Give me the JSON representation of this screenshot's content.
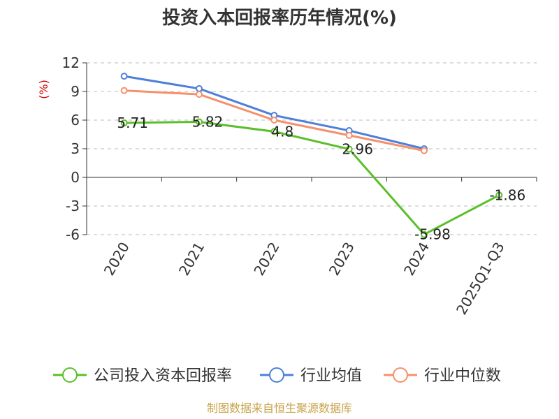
{
  "chart_data": {
    "type": "line",
    "title": "投资入本回报率历年情况(%)",
    "ylabel": "(%)",
    "categories": [
      "2020",
      "2021",
      "2022",
      "2023",
      "2024",
      "2025Q1-Q3"
    ],
    "y_ticks": [
      12,
      9,
      6,
      3,
      0,
      -3,
      -6
    ],
    "ylim": [
      -6,
      12
    ],
    "grid": true,
    "legend_position": "bottom",
    "series": [
      {
        "name": "公司投入资本回报率",
        "color": "#5bbf2a",
        "values": [
          5.71,
          5.82,
          4.8,
          2.96,
          -5.98,
          -1.86
        ],
        "labels": [
          "5.71",
          "5.82",
          "4.8",
          "2.96",
          "-5.98",
          "-1.86"
        ]
      },
      {
        "name": "行业均值",
        "color": "#4d80d9",
        "values": [
          10.6,
          9.3,
          6.5,
          4.9,
          3.0,
          null
        ]
      },
      {
        "name": "行业中位数",
        "color": "#f5906a",
        "values": [
          9.1,
          8.7,
          6.0,
          4.4,
          2.8,
          null
        ]
      }
    ]
  },
  "source": "制图数据来自恒生聚源数据库"
}
